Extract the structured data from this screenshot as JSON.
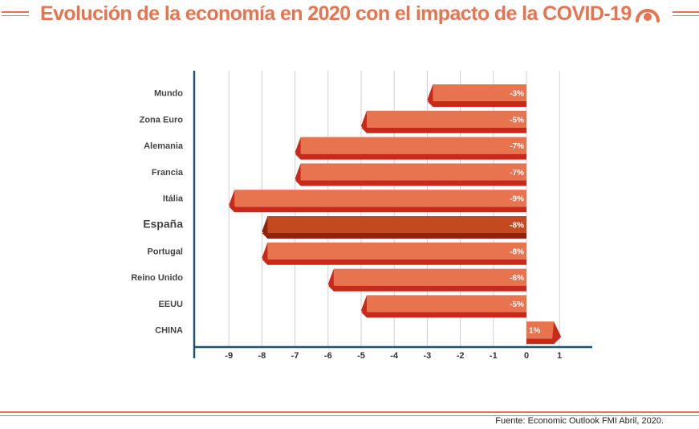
{
  "header": {
    "title": "Evolución de la economía en 2020 con el impacto de la COVID-19",
    "logo_icon": "target-ring-icon"
  },
  "footer": {
    "source": "Fuente: Economic Outlook FMI Abril, 2020."
  },
  "colors": {
    "accent": "#e8734f",
    "bar_light": "#e8734f",
    "bar_dark": "#c8291b",
    "bar_highlight_light": "#c24a1e",
    "bar_highlight_dark": "#8e2410",
    "axis": "#1d5374",
    "grid": "#d0d0d0"
  },
  "chart_data": {
    "type": "bar",
    "orientation": "horizontal",
    "categories": [
      "Mundo",
      "Zona Euro",
      "Alemania",
      "Francia",
      "Itália",
      "España",
      "Portugal",
      "Reino Unido",
      "EEUU",
      "CHINA"
    ],
    "values": [
      -3,
      -5,
      -7,
      -7,
      -9,
      -8,
      -8,
      -6,
      -5,
      1
    ],
    "data_labels": [
      "-3%",
      "-5%",
      "-7%",
      "-7%",
      "-9%",
      "-8%",
      "-8%",
      "-6%",
      "-5%",
      "1%"
    ],
    "highlight": "España",
    "x_ticks": [
      -9,
      -8,
      -7,
      -6,
      -5,
      -4,
      -3,
      -2,
      -1,
      0,
      1
    ],
    "x_tick_labels": [
      "-9",
      "-8",
      "-7",
      "-6",
      "-5",
      "-4",
      "-3",
      "-2",
      "-1",
      "0",
      "1"
    ],
    "xlim": [
      -9.5,
      2
    ],
    "grid": true,
    "title": "",
    "xlabel": "",
    "ylabel": ""
  }
}
